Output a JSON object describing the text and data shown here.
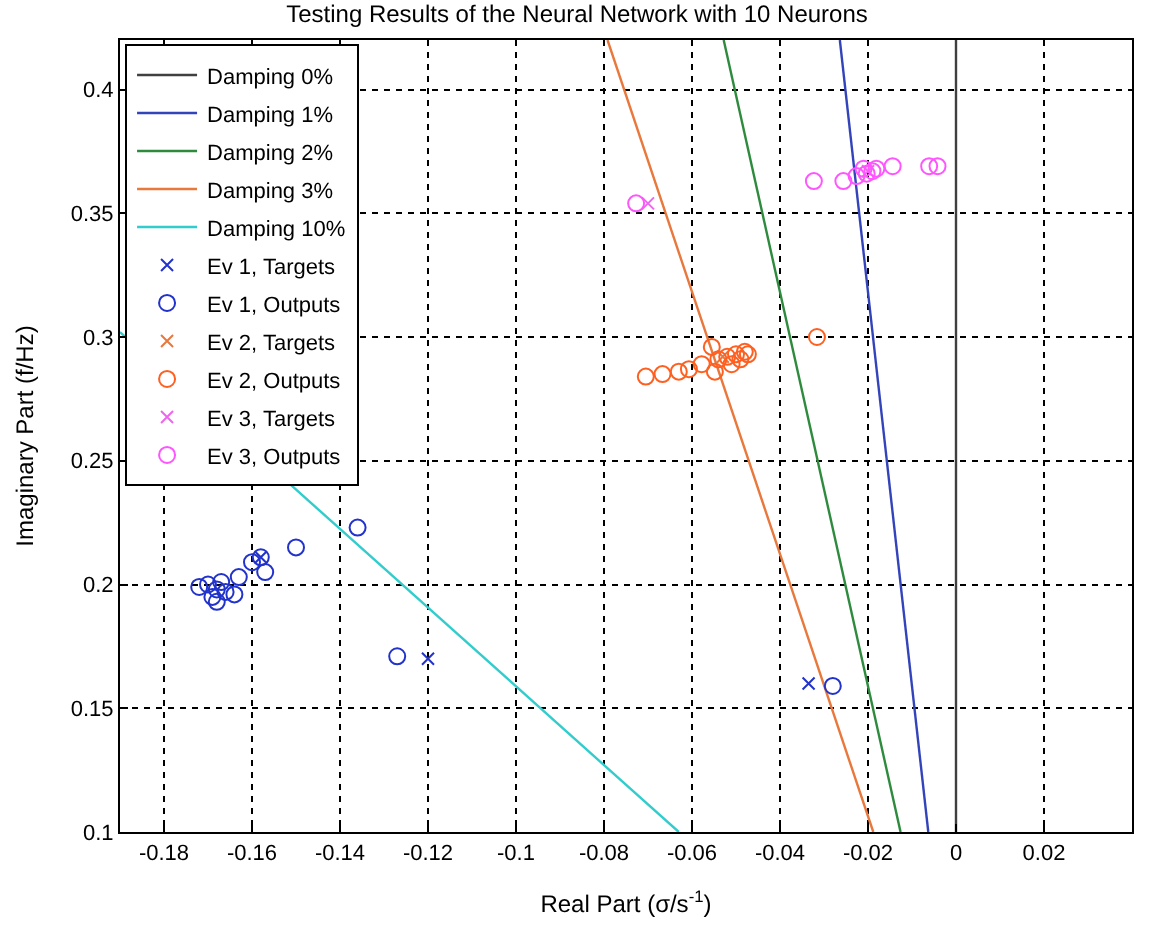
{
  "chart_data": {
    "type": "scatter",
    "title": "Testing Results of the Neural Network with 10 Neurons",
    "xlabel": "Real Part (σ/s$^{-1}$)",
    "ylabel": "Imaginary Part (f/Hz)",
    "xlim": [
      -0.19,
      0.04
    ],
    "ylim": [
      0.1,
      0.42
    ],
    "xticks": [
      -0.18,
      -0.16,
      -0.14,
      -0.12,
      -0.1,
      -0.08,
      -0.06,
      -0.04,
      -0.02,
      0,
      0.02
    ],
    "yticks": [
      0.1,
      0.15,
      0.2,
      0.25,
      0.3,
      0.35,
      0.4
    ],
    "grid": true,
    "legend": "top left",
    "series": [
      {
        "name": "Damping 0%",
        "type": "line",
        "marker": "none",
        "color": "#404040",
        "x": [
          0,
          0
        ],
        "values": [
          0.1,
          0.42
        ]
      },
      {
        "name": "Damping 1%",
        "type": "line",
        "marker": "none",
        "color": "#3344bb",
        "x": [
          -0.0063,
          -0.0264
        ],
        "values": [
          0.1,
          0.42
        ]
      },
      {
        "name": "Damping 2%",
        "type": "line",
        "marker": "none",
        "color": "#2e8b3e",
        "x": [
          -0.0126,
          -0.0528
        ],
        "values": [
          0.1,
          0.42
        ]
      },
      {
        "name": "Damping 3%",
        "type": "line",
        "marker": "none",
        "color": "#e8783c",
        "x": [
          -0.0188,
          -0.0792
        ],
        "values": [
          0.1,
          0.42
        ]
      },
      {
        "name": "Damping 10%",
        "type": "line",
        "marker": "none",
        "color": "#33cccc",
        "x": [
          -0.063,
          -0.19
        ],
        "values": [
          0.1,
          0.302
        ]
      },
      {
        "name": "Ev 1, Targets",
        "marker": "cross",
        "color": "#2233cc",
        "x": [
          -0.158,
          -0.12,
          -0.0335
        ],
        "values": [
          0.211,
          0.17,
          0.16
        ]
      },
      {
        "name": "Ev 1, Outputs",
        "marker": "circle",
        "color": "#2233cc",
        "x": [
          -0.168,
          -0.17,
          -0.172,
          -0.166,
          -0.168,
          -0.164,
          -0.167,
          -0.169,
          -0.163,
          -0.157,
          -0.158,
          -0.16,
          -0.15,
          -0.136,
          -0.127,
          -0.028
        ],
        "values": [
          0.198,
          0.2,
          0.199,
          0.197,
          0.193,
          0.196,
          0.201,
          0.195,
          0.203,
          0.205,
          0.211,
          0.209,
          0.215,
          0.223,
          0.171,
          0.159
        ]
      },
      {
        "name": "Ev 2, Targets",
        "marker": "cross",
        "color": "#e8783c",
        "x": [
          -0.053
        ],
        "values": [
          0.292
        ]
      },
      {
        "name": "Ev 2, Outputs",
        "marker": "circle",
        "color": "#ff6020",
        "x": [
          -0.0705,
          -0.0667,
          -0.063,
          -0.0607,
          -0.0578,
          -0.0548,
          -0.0555,
          -0.052,
          -0.05,
          -0.048,
          -0.0473,
          -0.054,
          -0.051,
          -0.049,
          -0.0316
        ],
        "values": [
          0.284,
          0.285,
          0.286,
          0.287,
          0.289,
          0.286,
          0.296,
          0.292,
          0.293,
          0.294,
          0.293,
          0.291,
          0.289,
          0.291,
          0.3
        ]
      },
      {
        "name": "Ev 3, Targets",
        "marker": "cross",
        "color": "#ee66ee",
        "x": [
          -0.07,
          -0.02
        ],
        "values": [
          0.354,
          0.367
        ]
      },
      {
        "name": "Ev 3, Outputs",
        "marker": "circle",
        "color": "#ff55ff",
        "x": [
          -0.0727,
          -0.0323,
          -0.0256,
          -0.0226,
          -0.0203,
          -0.0181,
          -0.021,
          -0.019,
          -0.0144,
          -0.0061,
          -0.0042
        ],
        "values": [
          0.354,
          0.363,
          0.363,
          0.365,
          0.366,
          0.368,
          0.368,
          0.367,
          0.369,
          0.369,
          0.369
        ]
      }
    ]
  }
}
